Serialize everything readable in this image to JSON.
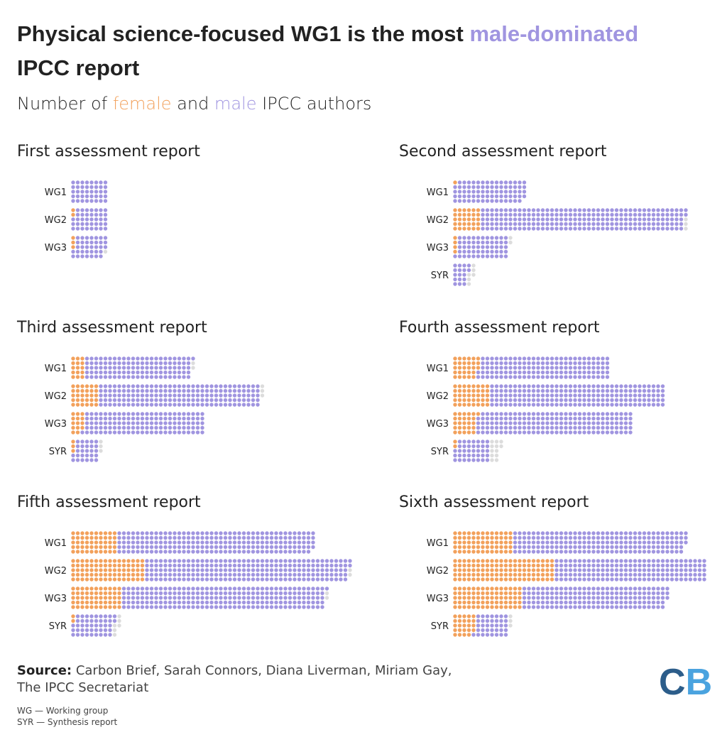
{
  "chart_data": {
    "type": "waffle",
    "title": [
      "Physical science-focused WG1 is the most ",
      "male-dominated",
      "IPCC report"
    ],
    "subtitle": [
      "Number of ",
      " and ",
      " IPCC authors"
    ],
    "rows": 5,
    "series": [
      {
        "name": "female",
        "color": "#f2a15c"
      },
      {
        "name": "male",
        "color": "#a095e0"
      },
      {
        "color": "#dcdcdc"
      }
    ],
    "panels": [
      {
        "title": "First assessment report",
        "categories": [
          "WG1",
          "WG2",
          "WG3"
        ],
        "series": [
          {
            "values": [
              0,
              2,
              3
            ]
          },
          {
            "values": [
              40,
              38,
              35
            ]
          },
          {
            "values": [
              0,
              0,
              1
            ]
          }
        ]
      },
      {
        "title": "Second assessment report",
        "categories": [
          "WG1",
          "WG2",
          "WG3",
          "SYR"
        ],
        "series": [
          {
            "values": [
              1,
              30,
              4,
              0
            ]
          },
          {
            "values": [
              78,
              222,
              56,
              17
            ]
          },
          {
            "values": [
              0,
              3,
              2,
              6
            ]
          }
        ]
      },
      {
        "title": "Third assessment report",
        "categories": [
          "WG1",
          "WG2",
          "WG3",
          "SYR"
        ],
        "series": [
          {
            "values": [
              15,
              30,
              14,
              3
            ]
          },
          {
            "values": [
              116,
              175,
              131,
              27
            ]
          },
          {
            "values": [
              2,
              3,
              0,
              3
            ]
          }
        ]
      },
      {
        "title": "Fourth assessment report",
        "categories": [
          "WG1",
          "WG2",
          "WG3",
          "SYR"
        ],
        "series": [
          {
            "values": [
              28,
              40,
              26,
              2
            ]
          },
          {
            "values": [
              142,
              190,
              169,
              38
            ]
          },
          {
            "values": [
              0,
              0,
              0,
              12
            ]
          }
        ]
      },
      {
        "title": "Fifth assessment report",
        "categories": [
          "WG1",
          "WG2",
          "WG3",
          "SYR"
        ],
        "series": [
          {
            "values": [
              50,
              80,
              55,
              2
            ]
          },
          {
            "values": [
              214,
              222,
              221,
              45
            ]
          },
          {
            "values": [
              0,
              2,
              2,
              6
            ]
          }
        ]
      },
      {
        "title": "Sixth assessment report",
        "categories": [
          "WG1",
          "WG2",
          "WG3",
          "SYR"
        ],
        "series": [
          {
            "values": [
              65,
              110,
              75,
              24
            ]
          },
          {
            "values": [
              188,
              165,
              158,
              36
            ]
          },
          {
            "values": [
              0,
              0,
              0,
              3
            ]
          }
        ]
      }
    ],
    "source_label": "Source:",
    "source": [
      " Carbon Brief, Sarah Connors, Diana Liverman, Miriam Gay,",
      "The IPCC Secretariat"
    ],
    "notes": [
      "WG — Working group",
      "SYR — Synthesis report"
    ],
    "logo": [
      "C",
      "B"
    ]
  }
}
